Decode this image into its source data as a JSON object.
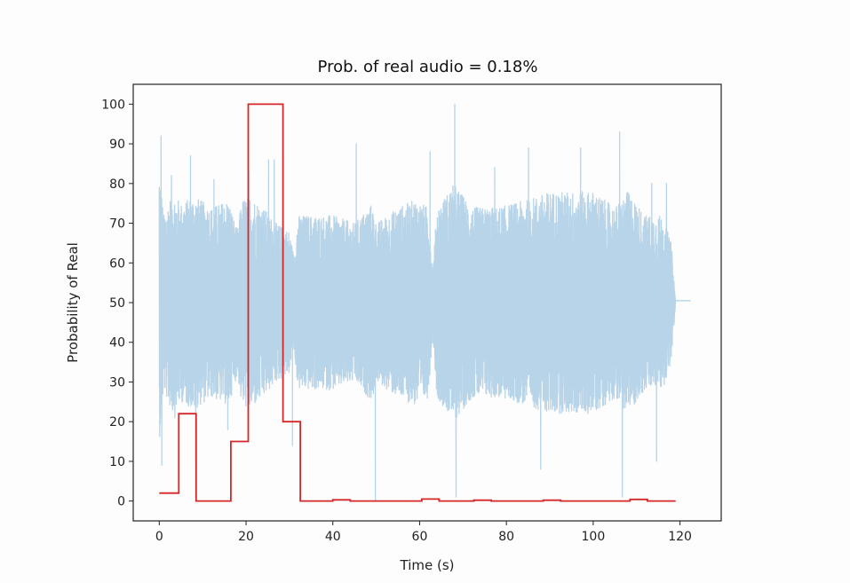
{
  "chart_data": {
    "type": "line",
    "title": "Prob. of real audio = 0.18%",
    "xlabel": "Time (s)",
    "ylabel": "Probability of Real",
    "xlim": [
      -6,
      129.5
    ],
    "ylim": [
      -5,
      105
    ],
    "x_ticks": [
      0,
      20,
      40,
      60,
      80,
      100,
      120
    ],
    "y_ticks": [
      0,
      10,
      20,
      30,
      40,
      50,
      60,
      70,
      80,
      90,
      100
    ],
    "grid": false,
    "colors": {
      "signal": "#b7d4e8",
      "probability": "#d62728"
    },
    "series": [
      {
        "kind": "waveform",
        "x_start": 0,
        "x_end": 119,
        "center": 50,
        "amplitude_envelope": [
          [
            0,
            35
          ],
          [
            1,
            22
          ],
          [
            3,
            28
          ],
          [
            5,
            25
          ],
          [
            8,
            27
          ],
          [
            12,
            24
          ],
          [
            16,
            26
          ],
          [
            18,
            18
          ],
          [
            19,
            26
          ],
          [
            21,
            27
          ],
          [
            24,
            24
          ],
          [
            27,
            20
          ],
          [
            30,
            18
          ],
          [
            31,
            12
          ],
          [
            32,
            22
          ],
          [
            36,
            22
          ],
          [
            40,
            22
          ],
          [
            45,
            20
          ],
          [
            49,
            25
          ],
          [
            50,
            20
          ],
          [
            55,
            24
          ],
          [
            59,
            26
          ],
          [
            62,
            24
          ],
          [
            63,
            8
          ],
          [
            64,
            24
          ],
          [
            68,
            30
          ],
          [
            72,
            24
          ],
          [
            78,
            24
          ],
          [
            85,
            26
          ],
          [
            90,
            28
          ],
          [
            95,
            28
          ],
          [
            100,
            28
          ],
          [
            105,
            24
          ],
          [
            108,
            28
          ],
          [
            112,
            22
          ],
          [
            116,
            22
          ],
          [
            118,
            15
          ],
          [
            119,
            0
          ]
        ],
        "spikes": [
          [
            0.4,
            92
          ],
          [
            0.6,
            9
          ],
          [
            2.8,
            82
          ],
          [
            3.6,
            21
          ],
          [
            7.2,
            87
          ],
          [
            8.4,
            10
          ],
          [
            12.6,
            81
          ],
          [
            15.8,
            18
          ],
          [
            20.6,
            83
          ],
          [
            25.2,
            86
          ],
          [
            26.5,
            86
          ],
          [
            30.7,
            14
          ],
          [
            45.4,
            90
          ],
          [
            49.8,
            0
          ],
          [
            62.4,
            88
          ],
          [
            62.8,
            48
          ],
          [
            68.1,
            100
          ],
          [
            68.4,
            1
          ],
          [
            77.3,
            84
          ],
          [
            85.1,
            89
          ],
          [
            87.9,
            8
          ],
          [
            97.1,
            89
          ],
          [
            106.1,
            93
          ],
          [
            106.7,
            1
          ],
          [
            113.5,
            80
          ],
          [
            114.6,
            10
          ],
          [
            116.9,
            80
          ]
        ],
        "tail": {
          "x_start": 119,
          "x_end": 122.5,
          "y": 50.5
        }
      },
      {
        "kind": "step",
        "points": [
          [
            0,
            2
          ],
          [
            4.5,
            2
          ],
          [
            4.5,
            22
          ],
          [
            8.5,
            22
          ],
          [
            8.5,
            0
          ],
          [
            16.5,
            0
          ],
          [
            16.5,
            15
          ],
          [
            20.5,
            15
          ],
          [
            20.5,
            100
          ],
          [
            28.5,
            100
          ],
          [
            28.5,
            20
          ],
          [
            32.5,
            20
          ],
          [
            32.5,
            0
          ],
          [
            40,
            0
          ],
          [
            40,
            0.3
          ],
          [
            44,
            0.3
          ],
          [
            44,
            0
          ],
          [
            60.5,
            0
          ],
          [
            60.5,
            0.5
          ],
          [
            64.5,
            0.5
          ],
          [
            64.5,
            0
          ],
          [
            72.5,
            0
          ],
          [
            72.5,
            0.2
          ],
          [
            76.5,
            0.2
          ],
          [
            76.5,
            0
          ],
          [
            88.5,
            0
          ],
          [
            88.5,
            0.2
          ],
          [
            92.5,
            0.2
          ],
          [
            92.5,
            0
          ],
          [
            108.5,
            0
          ],
          [
            108.5,
            0.4
          ],
          [
            112.5,
            0.4
          ],
          [
            112.5,
            0
          ],
          [
            119,
            0
          ]
        ]
      }
    ]
  }
}
